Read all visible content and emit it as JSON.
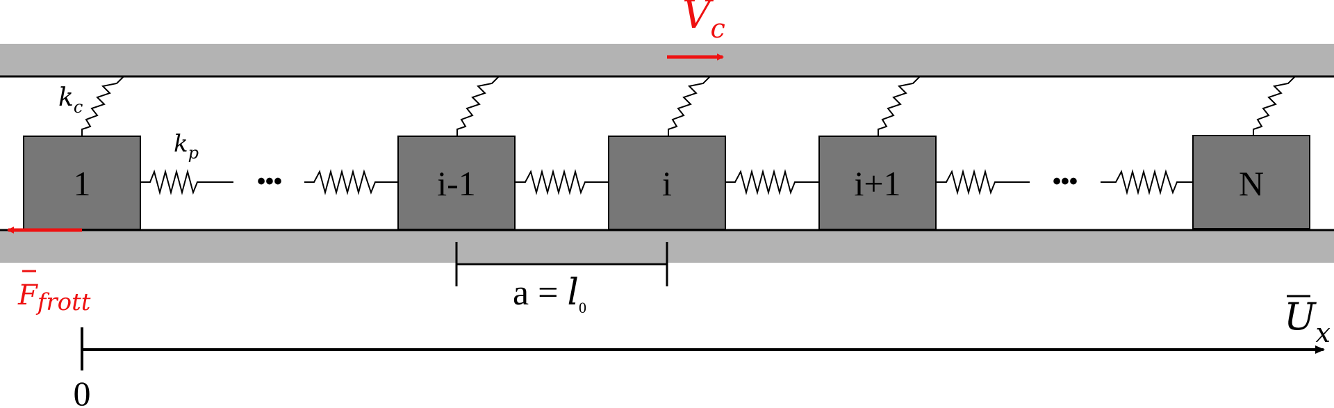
{
  "blocks": [
    {
      "label": "1"
    },
    {
      "label": "i-1"
    },
    {
      "label": "i"
    },
    {
      "label": "i+1"
    },
    {
      "label": "N"
    }
  ],
  "ellipsis": "•••",
  "labels": {
    "kc_main": "k",
    "kc_sub": "c",
    "kp_main": "k",
    "kp_sub": "p",
    "vc_main": "V",
    "vc_sub": "c",
    "f_main": "F",
    "f_sub": "frott",
    "spacing": "a = ",
    "spacing_l": "l",
    "spacing_sub": "0",
    "axis_main": "U",
    "axis_sub": "x",
    "origin": "0"
  },
  "colors": {
    "plate": "#b3b3b3",
    "block": "#777777",
    "force": "#ee1111"
  }
}
